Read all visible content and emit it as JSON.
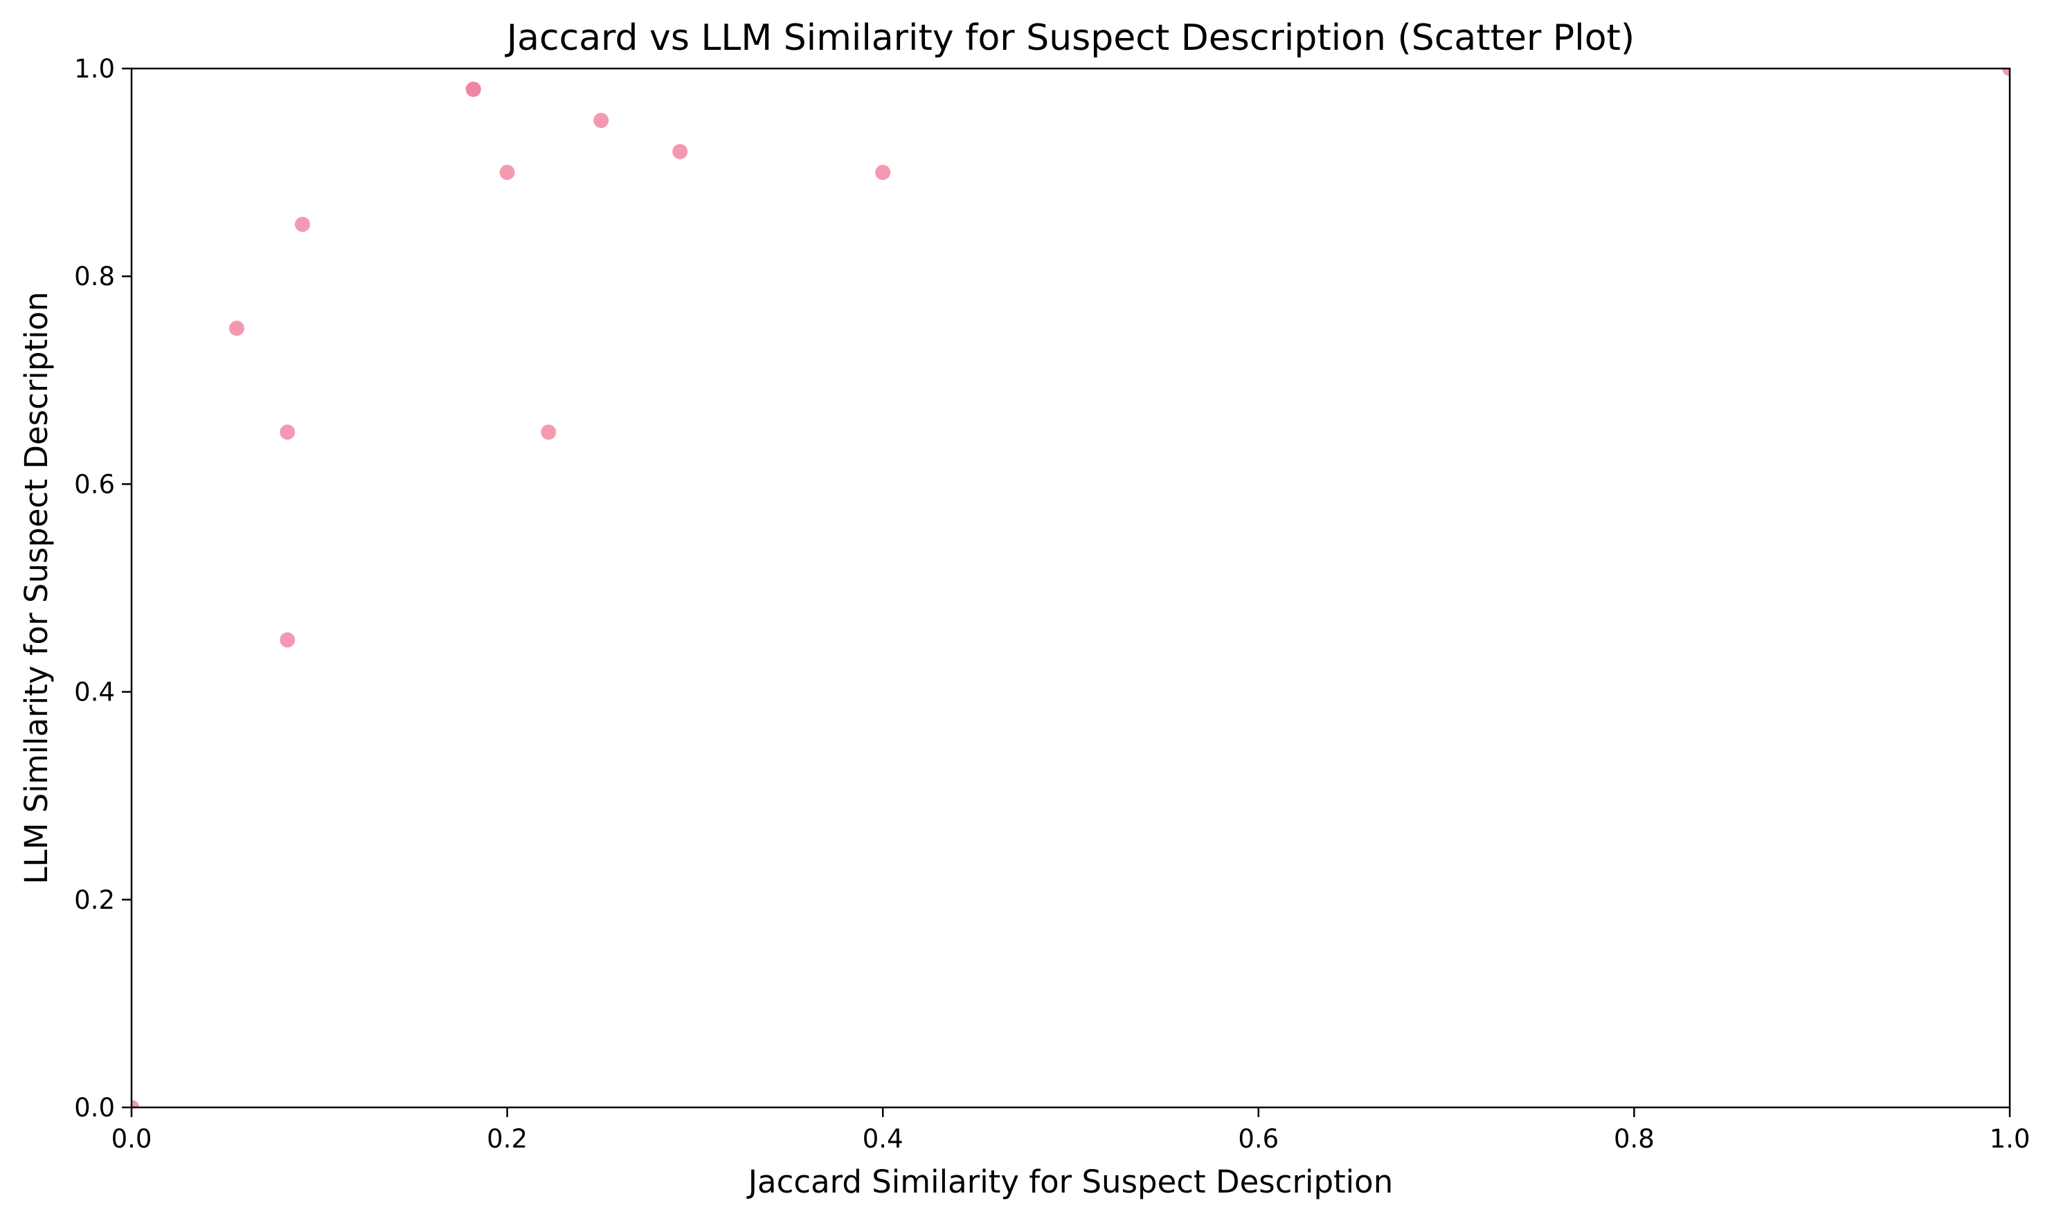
{
  "chart_data": {
    "type": "scatter",
    "title": "Jaccard vs LLM Similarity for Suspect Description (Scatter Plot)",
    "xlabel": "Jaccard Similarity for Suspect Description",
    "ylabel": "LLM Similarity for Suspect Description",
    "xlim": [
      0.0,
      1.0
    ],
    "ylim": [
      0.0,
      1.0
    ],
    "xticks": [
      0.0,
      0.2,
      0.4,
      0.6,
      0.8,
      1.0
    ],
    "yticks": [
      0.0,
      0.2,
      0.4,
      0.6,
      0.8,
      1.0
    ],
    "xtick_labels": [
      "0.0",
      "0.2",
      "0.4",
      "0.6",
      "0.8",
      "1.0"
    ],
    "ytick_labels": [
      "0.0",
      "0.2",
      "0.4",
      "0.6",
      "0.8",
      "1.0"
    ],
    "grid": false,
    "legend": null,
    "point_color": "#f0819c",
    "point_opacity": 0.8,
    "points": [
      {
        "x": 0.0,
        "y": 0.0
      },
      {
        "x": 0.056,
        "y": 0.75
      },
      {
        "x": 0.083,
        "y": 0.65
      },
      {
        "x": 0.083,
        "y": 0.45
      },
      {
        "x": 0.091,
        "y": 0.85
      },
      {
        "x": 0.182,
        "y": 0.98
      },
      {
        "x": 0.182,
        "y": 0.98
      },
      {
        "x": 0.2,
        "y": 0.9
      },
      {
        "x": 0.222,
        "y": 0.65
      },
      {
        "x": 0.25,
        "y": 0.95
      },
      {
        "x": 0.292,
        "y": 0.92
      },
      {
        "x": 0.4,
        "y": 0.9
      },
      {
        "x": 1.0,
        "y": 1.0
      }
    ]
  }
}
